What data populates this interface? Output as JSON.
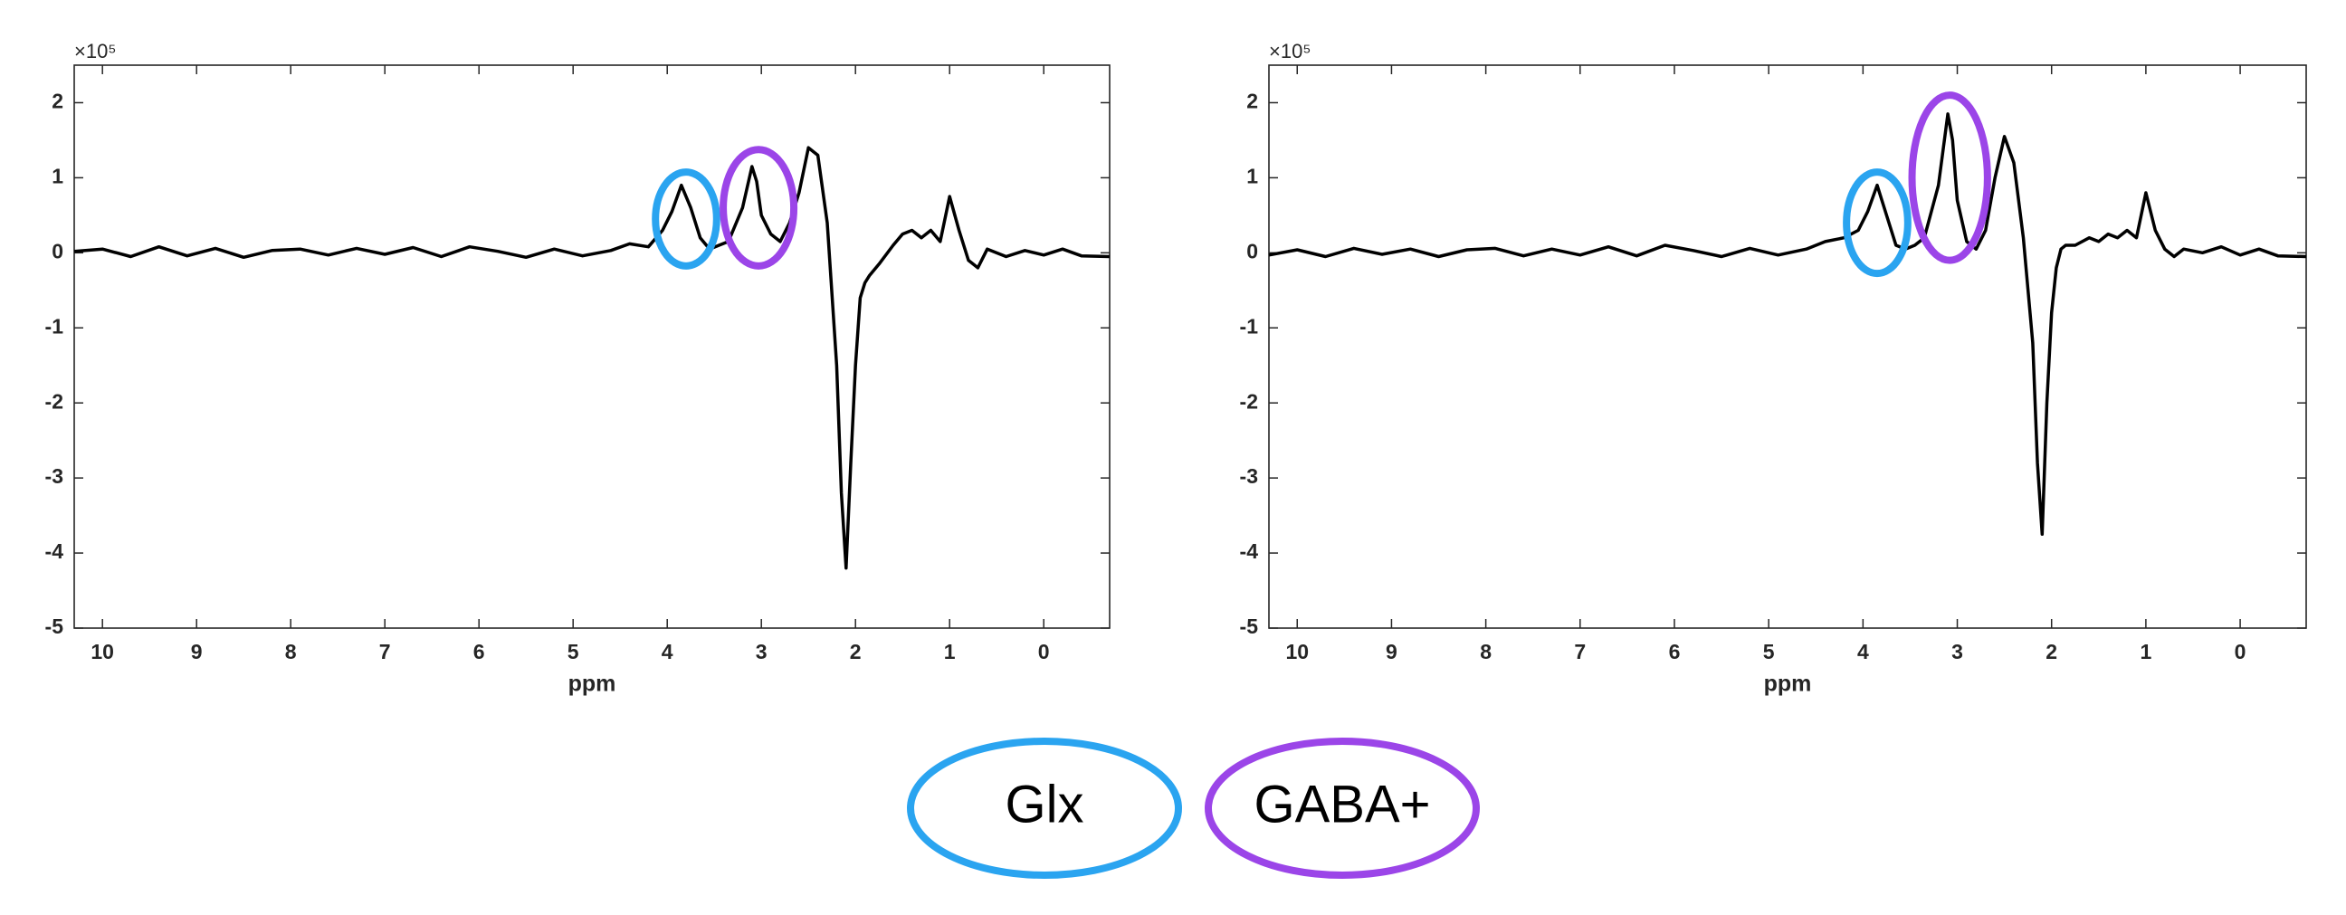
{
  "chart_data": [
    {
      "type": "line",
      "xlabel": "ppm",
      "y_multiplier": "×10⁵",
      "xlim": [
        10.3,
        -0.7
      ],
      "xticks": [
        10,
        9,
        8,
        7,
        6,
        5,
        4,
        3,
        2,
        1,
        0
      ],
      "ylim": [
        -5,
        2.5
      ],
      "yticks": [
        2,
        1,
        0,
        -1,
        -2,
        -3,
        -4,
        -5
      ],
      "color": "#000000",
      "x": [
        10.3,
        10.0,
        9.7,
        9.4,
        9.1,
        8.8,
        8.5,
        8.2,
        7.9,
        7.6,
        7.3,
        7.0,
        6.7,
        6.4,
        6.1,
        5.8,
        5.5,
        5.2,
        4.9,
        4.6,
        4.4,
        4.2,
        4.05,
        3.95,
        3.85,
        3.75,
        3.65,
        3.55,
        3.45,
        3.35,
        3.2,
        3.1,
        3.05,
        3.0,
        2.9,
        2.8,
        2.7,
        2.6,
        2.5,
        2.4,
        2.3,
        2.2,
        2.15,
        2.1,
        2.05,
        2.0,
        1.95,
        1.9,
        1.85,
        1.75,
        1.6,
        1.5,
        1.4,
        1.3,
        1.2,
        1.1,
        1.0,
        0.9,
        0.8,
        0.7,
        0.6,
        0.4,
        0.2,
        0.0,
        -0.2,
        -0.4,
        -0.7
      ],
      "values": [
        0.02,
        0.05,
        -0.05,
        0.08,
        -0.04,
        0.06,
        -0.06,
        0.03,
        0.05,
        -0.03,
        0.06,
        -0.02,
        0.07,
        -0.05,
        0.08,
        0.02,
        -0.06,
        0.05,
        -0.04,
        0.03,
        0.12,
        0.08,
        0.3,
        0.55,
        0.9,
        0.6,
        0.2,
        0.05,
        0.1,
        0.15,
        0.6,
        1.15,
        0.95,
        0.5,
        0.25,
        0.15,
        0.4,
        0.8,
        1.4,
        1.3,
        0.4,
        -1.5,
        -3.2,
        -4.2,
        -2.8,
        -1.5,
        -0.6,
        -0.4,
        -0.3,
        -0.15,
        0.1,
        0.25,
        0.3,
        0.2,
        0.3,
        0.15,
        0.75,
        0.3,
        -0.1,
        -0.2,
        0.05,
        -0.05,
        0.03,
        -0.03,
        0.05,
        -0.04,
        -0.05
      ],
      "highlights": [
        {
          "x": 3.8,
          "y": 0.45,
          "width": 0.65,
          "height": 1.25,
          "color": "#2aa4f0"
        },
        {
          "x": 3.03,
          "y": 0.6,
          "width": 0.75,
          "height": 1.55,
          "color": "#9b45e8"
        }
      ]
    },
    {
      "type": "line",
      "xlabel": "ppm",
      "y_multiplier": "×10⁵",
      "xlim": [
        10.3,
        -0.7
      ],
      "xticks": [
        10,
        9,
        8,
        7,
        6,
        5,
        4,
        3,
        2,
        1,
        0
      ],
      "ylim": [
        -5,
        2.5
      ],
      "yticks": [
        2,
        1,
        0,
        -1,
        -2,
        -3,
        -4,
        -5
      ],
      "color": "#000000",
      "x": [
        10.3,
        10.0,
        9.7,
        9.4,
        9.1,
        8.8,
        8.5,
        8.2,
        7.9,
        7.6,
        7.3,
        7.0,
        6.7,
        6.4,
        6.1,
        5.8,
        5.5,
        5.2,
        4.9,
        4.6,
        4.4,
        4.2,
        4.05,
        3.95,
        3.85,
        3.75,
        3.65,
        3.55,
        3.45,
        3.35,
        3.2,
        3.1,
        3.05,
        3.0,
        2.9,
        2.8,
        2.7,
        2.6,
        2.5,
        2.4,
        2.3,
        2.2,
        2.15,
        2.1,
        2.05,
        2.0,
        1.95,
        1.9,
        1.85,
        1.75,
        1.6,
        1.5,
        1.4,
        1.3,
        1.2,
        1.1,
        1.0,
        0.9,
        0.8,
        0.7,
        0.6,
        0.4,
        0.2,
        0.0,
        -0.2,
        -0.4,
        -0.7
      ],
      "values": [
        -0.03,
        0.04,
        -0.05,
        0.06,
        -0.02,
        0.05,
        -0.05,
        0.04,
        0.06,
        -0.04,
        0.05,
        -0.03,
        0.08,
        -0.04,
        0.1,
        0.03,
        -0.05,
        0.06,
        -0.03,
        0.05,
        0.15,
        0.2,
        0.3,
        0.55,
        0.9,
        0.5,
        0.1,
        0.05,
        0.1,
        0.2,
        0.9,
        1.85,
        1.5,
        0.7,
        0.15,
        0.05,
        0.3,
        1.0,
        1.55,
        1.2,
        0.2,
        -1.2,
        -2.8,
        -3.75,
        -2.0,
        -0.8,
        -0.2,
        0.05,
        0.1,
        0.1,
        0.2,
        0.15,
        0.25,
        0.2,
        0.3,
        0.2,
        0.8,
        0.3,
        0.05,
        -0.05,
        0.05,
        0.0,
        0.08,
        -0.03,
        0.05,
        -0.04,
        -0.05
      ],
      "highlights": [
        {
          "x": 3.85,
          "y": 0.4,
          "width": 0.65,
          "height": 1.35,
          "color": "#2aa4f0"
        },
        {
          "x": 3.08,
          "y": 1.0,
          "width": 0.8,
          "height": 2.2,
          "color": "#9b45e8"
        }
      ]
    }
  ],
  "legend": [
    {
      "name": "Glx",
      "color": "#2aa4f0"
    },
    {
      "name": "GABA+",
      "color": "#9b45e8"
    }
  ]
}
